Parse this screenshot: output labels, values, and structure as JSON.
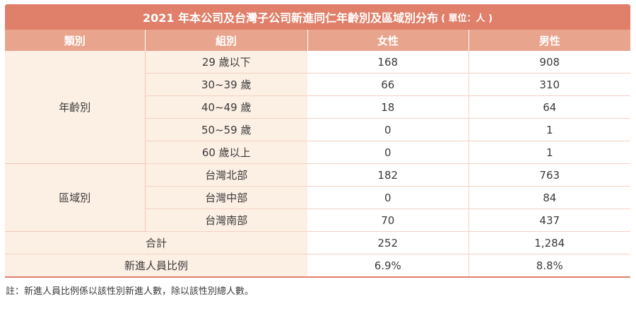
{
  "title": "2021 年本公司及台灣子公司新進同仁年齡別及區域別分布",
  "unit": "( 單位：人 )",
  "headers": [
    "類別",
    "組別",
    "女性",
    "男性"
  ],
  "age": {
    "category": "年齡別",
    "rows": [
      {
        "group": "29 歲以下",
        "female": "168",
        "male": "908"
      },
      {
        "group": "30~39 歲",
        "female": "66",
        "male": "310"
      },
      {
        "group": "40~49 歲",
        "female": "18",
        "male": "64"
      },
      {
        "group": "50~59 歲",
        "female": "0",
        "male": "1"
      },
      {
        "group": "60 歲以上",
        "female": "0",
        "male": "1"
      }
    ]
  },
  "region": {
    "category": "區域別",
    "rows": [
      {
        "group": "台灣北部",
        "female": "182",
        "male": "763"
      },
      {
        "group": "台灣中部",
        "female": "0",
        "male": "84"
      },
      {
        "group": "台灣南部",
        "female": "70",
        "male": "437"
      }
    ]
  },
  "total": {
    "label": "合計",
    "female": "252",
    "male": "1,284"
  },
  "ratio": {
    "label": "新進人員比例",
    "female": "6.9%",
    "male": "8.8%"
  },
  "note": "註：新進人員比例係以該性別新進人數，除以該性別總人數。"
}
